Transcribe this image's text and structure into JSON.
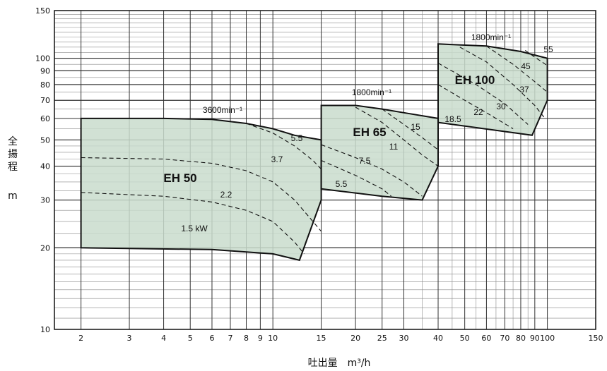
{
  "chart_data": {
    "type": "area",
    "title": "",
    "xlabel": "吐出量　m³/h",
    "ylabel_chars": [
      "全",
      "揚",
      "程"
    ],
    "ylabel_unit": "m",
    "xscale": "log",
    "yscale": "log",
    "xlim": [
      1.6,
      150
    ],
    "ylim": [
      10,
      150
    ],
    "grid": true,
    "x_ticks": [
      {
        "value": 2,
        "label": "2"
      },
      {
        "value": 3,
        "label": "3"
      },
      {
        "value": 4,
        "label": "4"
      },
      {
        "value": 5,
        "label": "5"
      },
      {
        "value": 6,
        "label": "6"
      },
      {
        "value": 7,
        "label": "7"
      },
      {
        "value": 8,
        "label": "8"
      },
      {
        "value": 9,
        "label": "9"
      },
      {
        "value": 10,
        "label": "10"
      },
      {
        "value": 15,
        "label": "15"
      },
      {
        "value": 20,
        "label": "20"
      },
      {
        "value": 25,
        "label": "25"
      },
      {
        "value": 30,
        "label": "30"
      },
      {
        "value": 40,
        "label": "40"
      },
      {
        "value": 50,
        "label": "50"
      },
      {
        "value": 60,
        "label": "60"
      },
      {
        "value": 70,
        "label": "70"
      },
      {
        "value": 80,
        "label": "80"
      },
      {
        "value": 90,
        "label": "90"
      },
      {
        "value": 100,
        "label": "100"
      },
      {
        "value": 150,
        "label": "150"
      }
    ],
    "y_ticks": [
      {
        "value": 10,
        "label": "10"
      },
      {
        "value": 20,
        "label": "20"
      },
      {
        "value": 30,
        "label": "30"
      },
      {
        "value": 40,
        "label": "40"
      },
      {
        "value": 50,
        "label": "50"
      },
      {
        "value": 60,
        "label": "60"
      },
      {
        "value": 70,
        "label": "70"
      },
      {
        "value": 80,
        "label": "80"
      },
      {
        "value": 90,
        "label": "90"
      },
      {
        "value": 100,
        "label": "100"
      },
      {
        "value": 150,
        "label": "150"
      }
    ],
    "regions": [
      {
        "name": "EH 50",
        "speed": "3600min⁻¹",
        "fill": "#c9dccd",
        "boundary": [
          [
            2,
            60
          ],
          [
            4,
            60
          ],
          [
            6,
            59.5
          ],
          [
            8,
            57.5
          ],
          [
            10,
            55
          ],
          [
            12,
            52
          ],
          [
            15,
            50
          ],
          [
            15,
            30
          ],
          [
            12.5,
            18
          ],
          [
            10,
            19
          ],
          [
            6,
            19.7
          ],
          [
            2,
            20
          ]
        ],
        "curves": [
          {
            "label": "5.5",
            "points": [
              [
                8,
                57.5
              ],
              [
                10,
                53
              ],
              [
                12,
                47.5
              ],
              [
                14,
                42
              ],
              [
                15,
                39
              ]
            ]
          },
          {
            "label": "3.7",
            "points": [
              [
                2,
                43
              ],
              [
                4,
                42.5
              ],
              [
                6,
                41
              ],
              [
                8,
                38.5
              ],
              [
                10,
                35
              ],
              [
                12,
                30
              ],
              [
                14,
                25
              ],
              [
                15,
                23
              ]
            ]
          },
          {
            "label": "2.2",
            "points": [
              [
                2,
                32
              ],
              [
                4,
                31
              ],
              [
                6,
                29.5
              ],
              [
                8,
                27.5
              ],
              [
                10,
                25
              ],
              [
                12,
                21
              ],
              [
                13,
                19
              ]
            ]
          },
          {
            "label": "1.5 kW",
            "points": []
          }
        ]
      },
      {
        "name": "EH 65",
        "speed": "1800min⁻¹",
        "fill": "#c9dccd",
        "boundary": [
          [
            15,
            67
          ],
          [
            20,
            67
          ],
          [
            25,
            65
          ],
          [
            30,
            63
          ],
          [
            40,
            60
          ],
          [
            40,
            40
          ],
          [
            35,
            30
          ],
          [
            25,
            31
          ],
          [
            15,
            33
          ]
        ],
        "curves": [
          {
            "label": "15",
            "points": [
              [
                25,
                65
              ],
              [
                30,
                57
              ],
              [
                35,
                51
              ],
              [
                40,
                46
              ]
            ]
          },
          {
            "label": "11",
            "points": [
              [
                20,
                66
              ],
              [
                25,
                58
              ],
              [
                30,
                50
              ],
              [
                35,
                44
              ],
              [
                40,
                40
              ]
            ]
          },
          {
            "label": "7.5",
            "points": [
              [
                15,
                48
              ],
              [
                20,
                43
              ],
              [
                25,
                39
              ],
              [
                30,
                35
              ],
              [
                35,
                31
              ]
            ]
          },
          {
            "label": "5.5",
            "points": [
              [
                15,
                42
              ],
              [
                20,
                37
              ],
              [
                25,
                33
              ],
              [
                27,
                31
              ]
            ]
          }
        ]
      },
      {
        "name": "EH 100",
        "speed": "1800min⁻¹",
        "fill": "#c9dccd",
        "boundary": [
          [
            40,
            113
          ],
          [
            60,
            111
          ],
          [
            80,
            106
          ],
          [
            100,
            100
          ],
          [
            100,
            70
          ],
          [
            88,
            52
          ],
          [
            40,
            58
          ]
        ],
        "curves": [
          {
            "label": "55",
            "points": [
              [
                83,
                107
              ],
              [
                90,
                101
              ],
              [
                100,
                94
              ]
            ]
          },
          {
            "label": "45",
            "points": [
              [
                60,
                111
              ],
              [
                75,
                95
              ],
              [
                90,
                82
              ],
              [
                100,
                75
              ]
            ]
          },
          {
            "label": "37",
            "points": [
              [
                48,
                110
              ],
              [
                60,
                97
              ],
              [
                75,
                80
              ],
              [
                90,
                67
              ],
              [
                98,
                60
              ]
            ]
          },
          {
            "label": "30",
            "points": [
              [
                40,
                96
              ],
              [
                55,
                80
              ],
              [
                70,
                68
              ],
              [
                85,
                57
              ]
            ]
          },
          {
            "label": "22",
            "points": [
              [
                40,
                80
              ],
              [
                50,
                70
              ],
              [
                60,
                63
              ],
              [
                75,
                55
              ]
            ]
          },
          {
            "label": "18.5",
            "points": []
          }
        ]
      }
    ]
  }
}
